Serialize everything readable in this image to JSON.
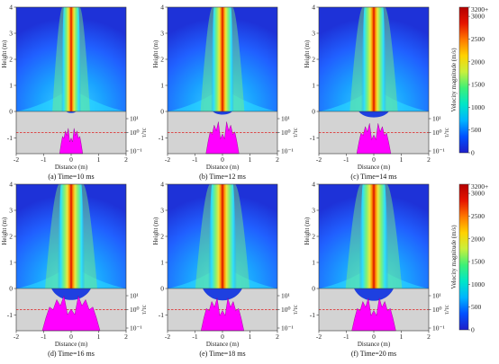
{
  "figure": {
    "panels": [
      {
        "caption": "(a) Time=10 ms",
        "jet_halfwidth": 0.36,
        "crater_halfwidth": 0.18,
        "crater_depth": 0.08,
        "spray_halfwidth": 0.42,
        "spray_level": 0.62
      },
      {
        "caption": "(b) Time=12 ms",
        "jet_halfwidth": 0.42,
        "crater_halfwidth": 0.35,
        "crater_depth": 0.16,
        "spray_halfwidth": 0.6,
        "spray_level": 0.78
      },
      {
        "caption": "(c) Time=14 ms",
        "jet_halfwidth": 0.46,
        "crater_halfwidth": 0.55,
        "crater_depth": 0.3,
        "spray_halfwidth": 0.62,
        "spray_level": 0.74
      },
      {
        "caption": "(d) Time=16 ms",
        "jet_halfwidth": 0.5,
        "crater_halfwidth": 0.72,
        "crater_depth": 0.58,
        "spray_halfwidth": 1.05,
        "spray_level": 0.85
      },
      {
        "caption": "(e) Time=18 ms",
        "jet_halfwidth": 0.52,
        "crater_halfwidth": 0.72,
        "crater_depth": 0.6,
        "spray_halfwidth": 0.78,
        "spray_level": 0.8
      },
      {
        "caption": "(f) Time=20 ms",
        "jet_halfwidth": 0.54,
        "crater_halfwidth": 0.72,
        "crater_depth": 0.62,
        "spray_halfwidth": 0.8,
        "spray_level": 0.8
      }
    ],
    "colorbar": {
      "label": "Velocity magnitude (m/s)",
      "tick_labels": [
        "3200+",
        "3000",
        "2500",
        "2000",
        "1500",
        "1000",
        "500",
        "0"
      ],
      "tick_values": [
        3200,
        3000,
        2500,
        2000,
        1500,
        1000,
        500,
        0
      ],
      "colors": [
        "#1e1ec8",
        "#0050ff",
        "#00b4ff",
        "#00e6c8",
        "#3cf078",
        "#c8f03c",
        "#ffd200",
        "#ff7800",
        "#e61400",
        "#b40000"
      ]
    }
  },
  "chart_data": {
    "type": "heatmap",
    "x_label": "Distance (m)",
    "y_label": "Height (m)",
    "secondary_y_label": "τ/τc",
    "x_ticks": [
      "-2",
      "-1",
      "0",
      "1",
      "2"
    ],
    "x_range": [
      -2,
      2
    ],
    "y_ticks": [
      "4",
      "3",
      "2",
      "1",
      "0",
      "-1"
    ],
    "y_range": [
      -1.6,
      4
    ],
    "secondary_y_ticks": [
      "10¹",
      "10⁰",
      "10⁻¹"
    ],
    "threshold_value": 1,
    "threshold_color": "#e02020",
    "spray_color": "#ff00ff",
    "ground_color": "#d3d3d3"
  }
}
